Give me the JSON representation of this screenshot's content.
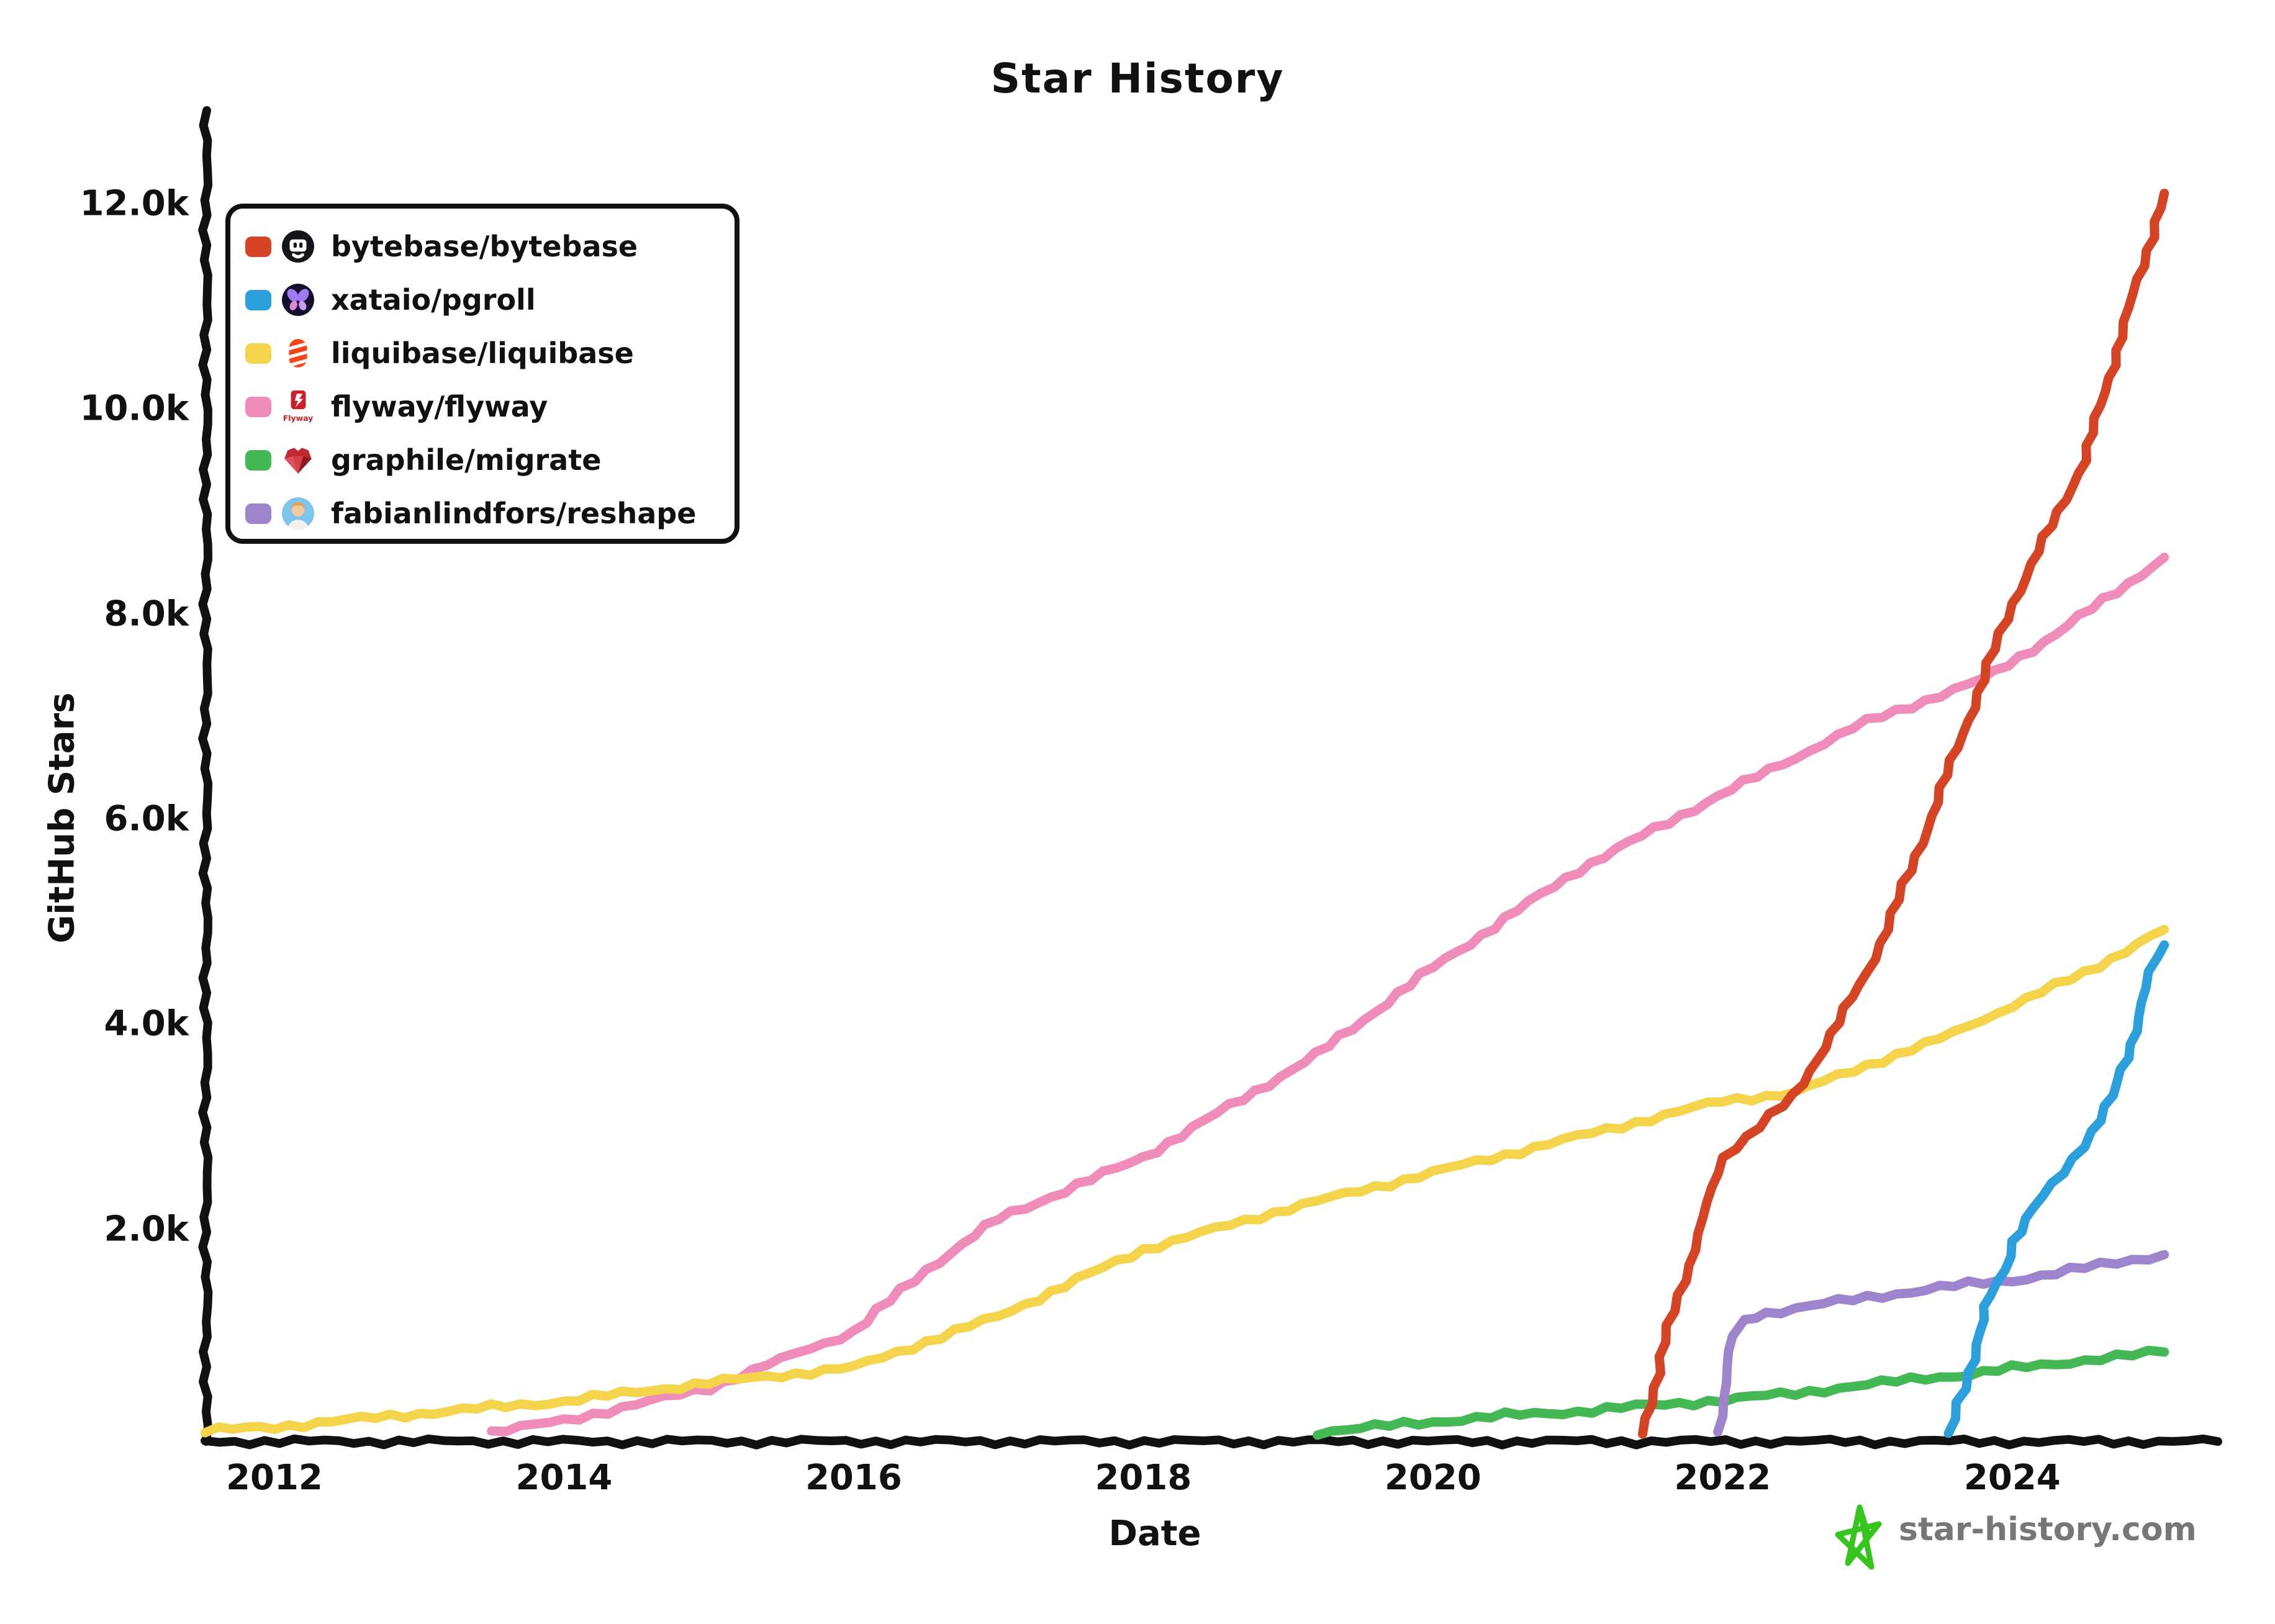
{
  "title": "Star History",
  "watermark": {
    "text": "star-history.com",
    "star_color": "#35c51e",
    "text_color": "#777777"
  },
  "chart_data": {
    "type": "line",
    "title": "Star History",
    "xlabel": "Date",
    "ylabel": "GitHub Stars",
    "grid": false,
    "legend_position": "top-left",
    "x_range": [
      2011.52,
      2025.42
    ],
    "y_range": [
      0,
      13000
    ],
    "x_ticks": [
      {
        "value": 2012,
        "label": "2012"
      },
      {
        "value": 2014,
        "label": "2014"
      },
      {
        "value": 2016,
        "label": "2016"
      },
      {
        "value": 2018,
        "label": "2018"
      },
      {
        "value": 2020,
        "label": "2020"
      },
      {
        "value": 2022,
        "label": "2022"
      },
      {
        "value": 2024,
        "label": "2024"
      }
    ],
    "y_ticks": [
      {
        "value": 2000,
        "label": "2.0k"
      },
      {
        "value": 4000,
        "label": "4.0k"
      },
      {
        "value": 6000,
        "label": "6.0k"
      },
      {
        "value": 8000,
        "label": "8.0k"
      },
      {
        "value": 10000,
        "label": "10.0k"
      },
      {
        "value": 12000,
        "label": "12.0k"
      }
    ],
    "series": [
      {
        "name": "bytebase/bytebase",
        "color": "#d64426",
        "icon": "bytebase-logo",
        "points": [
          [
            2021.45,
            0
          ],
          [
            2021.6,
            900
          ],
          [
            2021.8,
            1800
          ],
          [
            2022,
            2700
          ],
          [
            2022.5,
            3300
          ],
          [
            2023,
            4500
          ],
          [
            2023.3,
            5500
          ],
          [
            2023.8,
            7360
          ],
          [
            2024,
            8100
          ],
          [
            2024.5,
            9500
          ],
          [
            2024.75,
            10700
          ],
          [
            2025.05,
            12100
          ]
        ]
      },
      {
        "name": "xataio/pgroll",
        "color": "#2ba0dc",
        "icon": "xata-logo",
        "points": [
          [
            2023.58,
            0
          ],
          [
            2023.63,
            300
          ],
          [
            2023.7,
            600
          ],
          [
            2023.78,
            1000
          ],
          [
            2023.85,
            1350
          ],
          [
            2023.95,
            1600
          ],
          [
            2024.0,
            1880
          ],
          [
            2024.15,
            2200
          ],
          [
            2024.35,
            2550
          ],
          [
            2024.55,
            2950
          ],
          [
            2024.7,
            3300
          ],
          [
            2024.82,
            3800
          ],
          [
            2024.92,
            4350
          ],
          [
            2025.0,
            4650
          ],
          [
            2025.05,
            4770
          ]
        ]
      },
      {
        "name": "liquibase/liquibase",
        "color": "#f3d44b",
        "icon": "liquibase-logo",
        "points": [
          [
            2011.52,
            30
          ],
          [
            2012,
            70
          ],
          [
            2013,
            200
          ],
          [
            2014,
            320
          ],
          [
            2015,
            500
          ],
          [
            2016,
            650
          ],
          [
            2017,
            1150
          ],
          [
            2018,
            1800
          ],
          [
            2019,
            2200
          ],
          [
            2020,
            2550
          ],
          [
            2021,
            2900
          ],
          [
            2022,
            3250
          ],
          [
            2022.5,
            3330
          ],
          [
            2023,
            3600
          ],
          [
            2023.5,
            3850
          ],
          [
            2024,
            4180
          ],
          [
            2024.5,
            4500
          ],
          [
            2025.05,
            4920
          ]
        ]
      },
      {
        "name": "flyway/flyway",
        "color": "#f08cba",
        "icon": "flyway-logo",
        "points": [
          [
            2013.5,
            20
          ],
          [
            2014,
            130
          ],
          [
            2015,
            450
          ],
          [
            2016,
            1000
          ],
          [
            2016.5,
            1600
          ],
          [
            2017,
            2100
          ],
          [
            2018,
            2700
          ],
          [
            2018.6,
            3200
          ],
          [
            2019.2,
            3700
          ],
          [
            2020,
            4550
          ],
          [
            2021,
            5500
          ],
          [
            2021.8,
            6100
          ],
          [
            2022.5,
            6600
          ],
          [
            2023,
            6950
          ],
          [
            2023.8,
            7360
          ],
          [
            2024.3,
            7800
          ],
          [
            2025.05,
            8550
          ]
        ]
      },
      {
        "name": "graphile/migrate",
        "color": "#44b854",
        "icon": "graphile-logo",
        "points": [
          [
            2019.2,
            20
          ],
          [
            2019.6,
            70
          ],
          [
            2020,
            120
          ],
          [
            2020.5,
            180
          ],
          [
            2021,
            220
          ],
          [
            2021.5,
            280
          ],
          [
            2022,
            330
          ],
          [
            2022.5,
            400
          ],
          [
            2023,
            480
          ],
          [
            2023.4,
            550
          ],
          [
            2023.7,
            580
          ],
          [
            2024,
            640
          ],
          [
            2024.5,
            720
          ],
          [
            2025.05,
            800
          ]
        ]
      },
      {
        "name": "fabianlindfors/reshape",
        "color": "#9d84cd",
        "icon": "fabianlindfors-avatar",
        "points": [
          [
            2021.97,
            20
          ],
          [
            2022.02,
            500
          ],
          [
            2022.07,
            950
          ],
          [
            2022.15,
            1120
          ],
          [
            2022.3,
            1180
          ],
          [
            2022.6,
            1250
          ],
          [
            2023,
            1330
          ],
          [
            2023.5,
            1430
          ],
          [
            2024,
            1500
          ],
          [
            2024.5,
            1620
          ],
          [
            2025.05,
            1750
          ]
        ]
      }
    ]
  }
}
